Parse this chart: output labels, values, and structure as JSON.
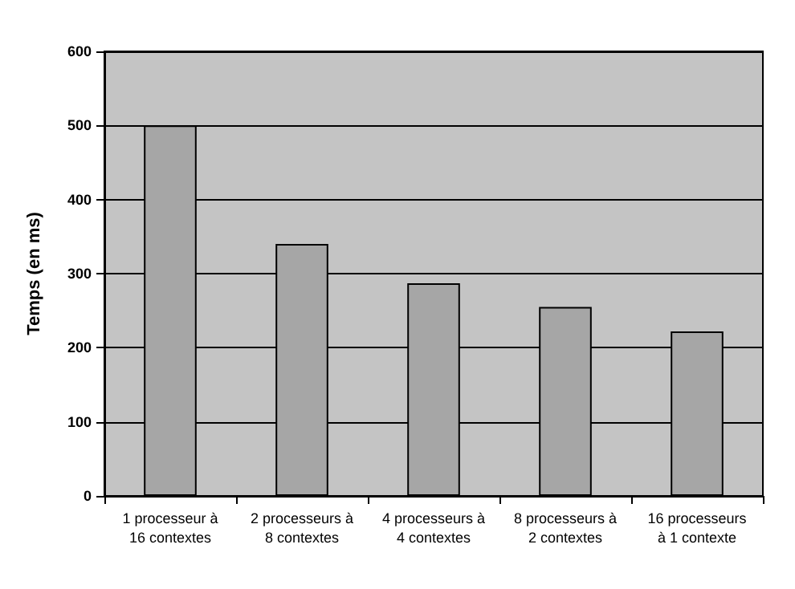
{
  "chart_data": {
    "type": "bar",
    "ylabel": "Temps (en ms)",
    "categories": [
      "1 processeur à\n16 contextes",
      "2 processeurs à\n8 contextes",
      "4 processeurs à\n4 contextes",
      "8 processeurs à\n2 contextes",
      "16 processeurs\nà 1 contexte"
    ],
    "values": [
      500,
      340,
      287,
      255,
      222
    ],
    "color": "#a6a6a6",
    "ylim": [
      0,
      600
    ],
    "yticks": [
      0,
      100,
      200,
      300,
      400,
      500,
      600
    ],
    "grid": "y"
  }
}
